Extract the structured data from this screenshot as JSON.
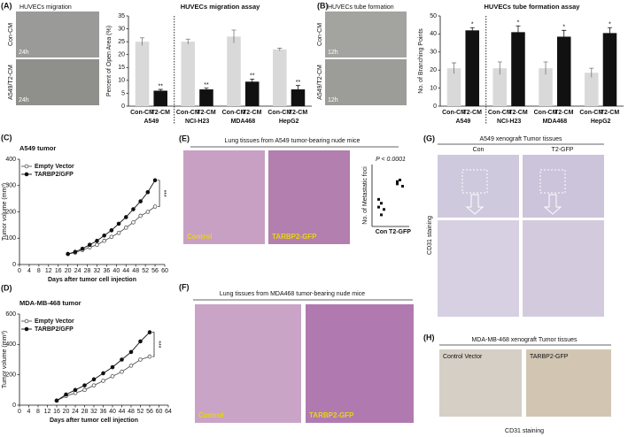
{
  "figure": {
    "panel_labels": [
      "(A)",
      "(B)",
      "(C)",
      "(D)",
      "(E)",
      "(F)",
      "(G)",
      "(H)"
    ],
    "a": {
      "title": "HUVECs migration",
      "rows": [
        "Con-CM",
        "A549/T2-CM"
      ],
      "time": "24h"
    },
    "b": {
      "title": "HUVECs tube formation",
      "rows": [
        "Con-CM",
        "A549/T2-CM"
      ],
      "time": "12h"
    },
    "e": {
      "title": "Lung tissues from A549 tumor-bearing nude mice",
      "images": [
        "Control",
        "TARBP2-GFP"
      ]
    },
    "f": {
      "title": "Lung tissues from MDA468 tumor-bearing nude mice",
      "images": [
        "Control",
        "TARBP2-GFP"
      ]
    },
    "g": {
      "title": "A549 xenograft Tumor tissues",
      "columns": [
        "Con",
        "T2-GFP"
      ],
      "side": "CD31 staining"
    },
    "h": {
      "title": "MDA-MB-468 xenograft Tumor tissues",
      "images": [
        "Control Vector",
        "TARBP2-GFP"
      ],
      "footer": "CD31 staining"
    }
  },
  "chart_data": [
    {
      "type": "bar",
      "title": "HUVECs migration assay",
      "y_label": "Percent of Open Area (%)",
      "categories": [
        "A549",
        "NCI-H23",
        "MDA468",
        "HepG2"
      ],
      "series": [
        {
          "name": "Con-CM",
          "color": "#d9d9d9",
          "values": [
            25,
            25,
            27,
            22
          ],
          "errors": [
            1.5,
            1,
            2.5,
            0.5
          ]
        },
        {
          "name": "T2-CM",
          "color": "#111111",
          "values": [
            6,
            6.5,
            9.5,
            6.5
          ],
          "errors": [
            0.5,
            0.5,
            1,
            1.5
          ],
          "annotations": [
            "**",
            "**",
            "**",
            "**"
          ]
        }
      ],
      "ylim": [
        0,
        35
      ],
      "yticks": [
        0,
        5,
        10,
        15,
        20,
        25,
        30,
        35
      ]
    },
    {
      "type": "bar",
      "title": "HUVECs tube formation assay",
      "y_label": "No. of Branching Points",
      "categories": [
        "A549",
        "NCI-H23",
        "MDA468",
        "HepG2"
      ],
      "series": [
        {
          "name": "Con-CM",
          "color": "#d9d9d9",
          "values": [
            21,
            21,
            21,
            18.5
          ],
          "errors": [
            3,
            3.5,
            3.5,
            2.5
          ]
        },
        {
          "name": "T2-CM",
          "color": "#111111",
          "values": [
            42,
            41,
            38.5,
            40.5
          ],
          "errors": [
            1.5,
            3.5,
            3.5,
            3
          ],
          "annotations": [
            "*",
            "*",
            "*",
            "*"
          ]
        }
      ],
      "ylim": [
        0,
        50
      ],
      "yticks": [
        0,
        10,
        20,
        30,
        40,
        50
      ]
    },
    {
      "type": "line",
      "title": "A549 tumor",
      "y_label": "Tumor volume (mm³)",
      "x_label": "Days after tumor cell injection",
      "x": [
        20,
        23,
        26,
        29,
        32,
        35,
        38,
        41,
        44,
        47,
        50,
        53,
        56
      ],
      "series": [
        {
          "name": "Empty Vector",
          "color": "#555555",
          "marker": "open",
          "values": [
            40,
            45,
            55,
            65,
            75,
            90,
            105,
            120,
            140,
            160,
            185,
            200,
            220
          ]
        },
        {
          "name": "TARBP2/GFP",
          "color": "#111111",
          "marker": "filled",
          "values": [
            40,
            48,
            60,
            75,
            90,
            110,
            130,
            155,
            180,
            210,
            240,
            275,
            320
          ]
        }
      ],
      "xlim": [
        0,
        60
      ],
      "xticks": [
        0,
        4,
        8,
        12,
        16,
        20,
        24,
        28,
        32,
        36,
        40,
        44,
        48,
        52,
        56,
        60
      ],
      "ylim": [
        0,
        400
      ],
      "yticks": [
        0,
        100,
        200,
        300,
        400
      ],
      "legend": "upper left",
      "annotation": "***"
    },
    {
      "type": "line",
      "title": "MDA-MB-468 tumor",
      "y_label": "Tumor volume (mm³)",
      "x_label": "Days after tumor cell injection",
      "x": [
        16,
        20,
        24,
        28,
        32,
        36,
        40,
        44,
        48,
        52,
        56
      ],
      "series": [
        {
          "name": "Empty Vector",
          "color": "#555555",
          "marker": "open",
          "values": [
            30,
            60,
            80,
            100,
            130,
            160,
            190,
            220,
            260,
            300,
            320
          ]
        },
        {
          "name": "TARBP2/GFP",
          "color": "#111111",
          "marker": "filled",
          "values": [
            30,
            70,
            100,
            130,
            170,
            210,
            250,
            300,
            350,
            420,
            480
          ]
        }
      ],
      "xlim": [
        0,
        64
      ],
      "xticks": [
        0,
        4,
        8,
        12,
        16,
        20,
        24,
        28,
        32,
        36,
        40,
        44,
        48,
        52,
        56,
        60,
        64
      ],
      "ylim": [
        0,
        600
      ],
      "yticks": [
        0,
        200,
        400,
        600
      ],
      "legend": "upper left",
      "annotation": "***"
    },
    {
      "type": "scatter",
      "y_label": "No. of Metastatic foci",
      "categories": [
        "Con",
        "T2-GFP"
      ],
      "values": [
        [
          2.5,
          3,
          2.2,
          3.5,
          1.5
        ],
        [
          5.5,
          6,
          5.2,
          5.8
        ]
      ],
      "color": "#111111",
      "ylim": [
        0,
        8
      ],
      "annotation": "P < 0.0001"
    }
  ]
}
